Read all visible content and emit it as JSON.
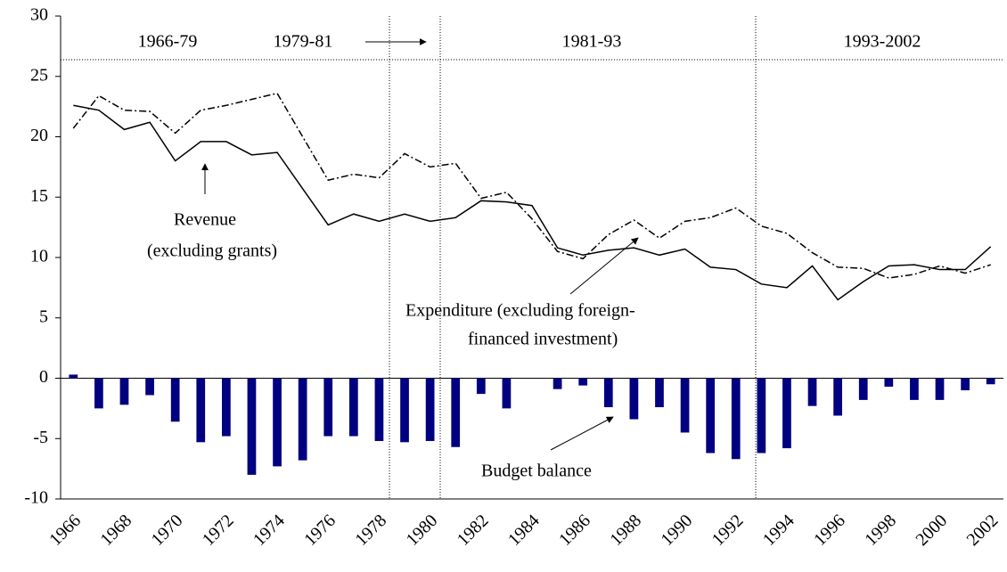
{
  "chart_data": {
    "type": "bar_line",
    "categories": [
      "1966",
      null,
      "1968",
      null,
      "1970",
      null,
      "1972",
      null,
      "1974",
      null,
      "1976",
      null,
      "1978",
      null,
      "1980",
      null,
      "1982",
      null,
      "1984",
      null,
      "1986",
      null,
      "1988",
      null,
      "1990",
      null,
      "1992",
      null,
      "1994",
      null,
      "1996",
      null,
      "1998",
      null,
      "2000",
      null,
      "2002"
    ],
    "series": [
      {
        "name": "Revenue (excluding grants)",
        "type": "line",
        "dash": "solid",
        "color": "#000000",
        "values": [
          22.6,
          22.2,
          20.6,
          21.2,
          18.0,
          19.6,
          19.6,
          18.5,
          18.7,
          15.7,
          12.7,
          13.6,
          13.0,
          13.6,
          13.0,
          13.3,
          14.7,
          14.6,
          14.3,
          10.8,
          10.2,
          10.6,
          10.8,
          10.2,
          10.7,
          9.2,
          9.0,
          7.8,
          7.5,
          9.3,
          6.5,
          8.0,
          9.3,
          9.4,
          9.0,
          9.0,
          10.9
        ]
      },
      {
        "name": "Expenditure (excluding foreign-financed investment)",
        "type": "line",
        "dash": "dashdot",
        "color": "#000000",
        "values": [
          20.7,
          23.4,
          22.2,
          22.1,
          20.3,
          22.2,
          22.6,
          23.1,
          23.6,
          20.0,
          16.4,
          16.9,
          16.6,
          18.6,
          17.5,
          17.8,
          14.9,
          15.4,
          13.2,
          10.5,
          9.9,
          11.9,
          13.1,
          11.6,
          13.0,
          13.3,
          14.1,
          12.6,
          12.0,
          10.4,
          9.2,
          9.1,
          8.3,
          8.6,
          9.3,
          8.7,
          9.4
        ]
      },
      {
        "name": "Budget balance",
        "type": "bar",
        "color": "#000080",
        "values": [
          0.3,
          -2.5,
          -2.2,
          -1.4,
          -3.6,
          -5.3,
          -4.8,
          -8.0,
          -7.3,
          -6.8,
          -4.8,
          -4.8,
          -5.2,
          -5.3,
          -5.2,
          -5.7,
          -1.3,
          -2.5,
          0,
          -0.9,
          -0.6,
          -2.4,
          -3.4,
          -2.4,
          -4.5,
          -6.2,
          -6.7,
          -6.2,
          -5.8,
          -2.3,
          -3.1,
          -1.8,
          -0.7,
          -1.8,
          -1.8,
          -1.0,
          -0.5
        ]
      }
    ],
    "ylim": [
      -10,
      30
    ],
    "yticks": [
      -10,
      -5,
      0,
      5,
      10,
      15,
      20,
      25,
      30
    ],
    "periods": [
      "1966-79",
      "1979-81",
      "1981-93",
      "1993-2002"
    ],
    "annotations": {
      "revenue": [
        "Revenue",
        "(excluding grants)"
      ],
      "expenditure": [
        "Expenditure (excluding foreign-",
        "financed investment)"
      ],
      "balance": [
        "Budget balance"
      ]
    }
  }
}
